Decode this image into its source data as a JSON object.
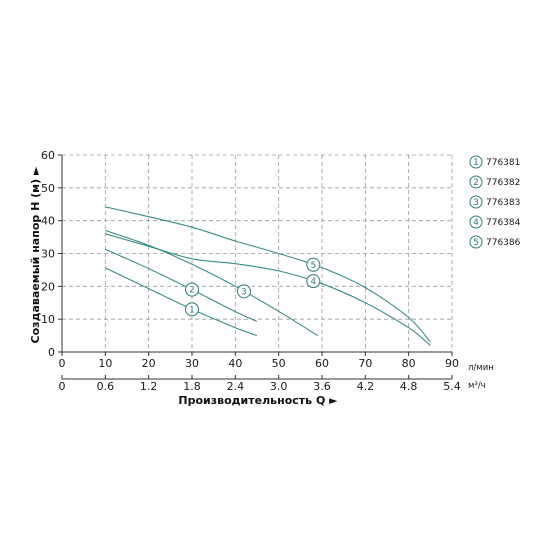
{
  "chart_data": {
    "type": "line",
    "ylabel": "Создаваемый напор H (м) ►",
    "xlabel": "Производительность Q ►",
    "x_unit_primary": "л/мин",
    "x_unit_secondary": "м³/ч",
    "xlim": [
      0,
      90
    ],
    "ylim": [
      0,
      60
    ],
    "x_ticks": [
      "0",
      "10",
      "20",
      "30",
      "40",
      "50",
      "60",
      "70",
      "80",
      "90"
    ],
    "x2_ticks": [
      "0",
      "0.6",
      "1.2",
      "1.8",
      "2.4",
      "3.0",
      "3.6",
      "4.2",
      "4.8",
      "5.4"
    ],
    "y_ticks": [
      "0",
      "10",
      "20",
      "30",
      "40",
      "50",
      "60"
    ],
    "grid": true,
    "legend_position": "right",
    "line_color": "#3a8c88",
    "marker_color": "#2a7a78",
    "series": [
      {
        "name": "776381",
        "marker": "1",
        "x": [
          10,
          20,
          30,
          40,
          45
        ],
        "y": [
          25.6,
          19.3,
          13.0,
          7.4,
          5.0
        ]
      },
      {
        "name": "776382",
        "marker": "2",
        "x": [
          10,
          20,
          30,
          40,
          45
        ],
        "y": [
          31.3,
          25.4,
          19.0,
          12.3,
          9.3
        ]
      },
      {
        "name": "776383",
        "marker": "3",
        "x": [
          10,
          20,
          30,
          40,
          50,
          59
        ],
        "y": [
          37.0,
          32.5,
          26.7,
          20.0,
          12.4,
          5.0
        ]
      },
      {
        "name": "776384",
        "marker": "4",
        "x": [
          10,
          20,
          30,
          40,
          50,
          60,
          70,
          80,
          85
        ],
        "y": [
          36.0,
          32.2,
          28.4,
          26.9,
          24.7,
          20.8,
          15.0,
          7.4,
          2.0
        ]
      },
      {
        "name": "776386",
        "marker": "5",
        "x": [
          10,
          20,
          30,
          40,
          50,
          60,
          70,
          80,
          85
        ],
        "y": [
          44.2,
          41.2,
          38.0,
          33.8,
          30.0,
          25.7,
          19.6,
          10.5,
          3.1
        ]
      }
    ]
  }
}
